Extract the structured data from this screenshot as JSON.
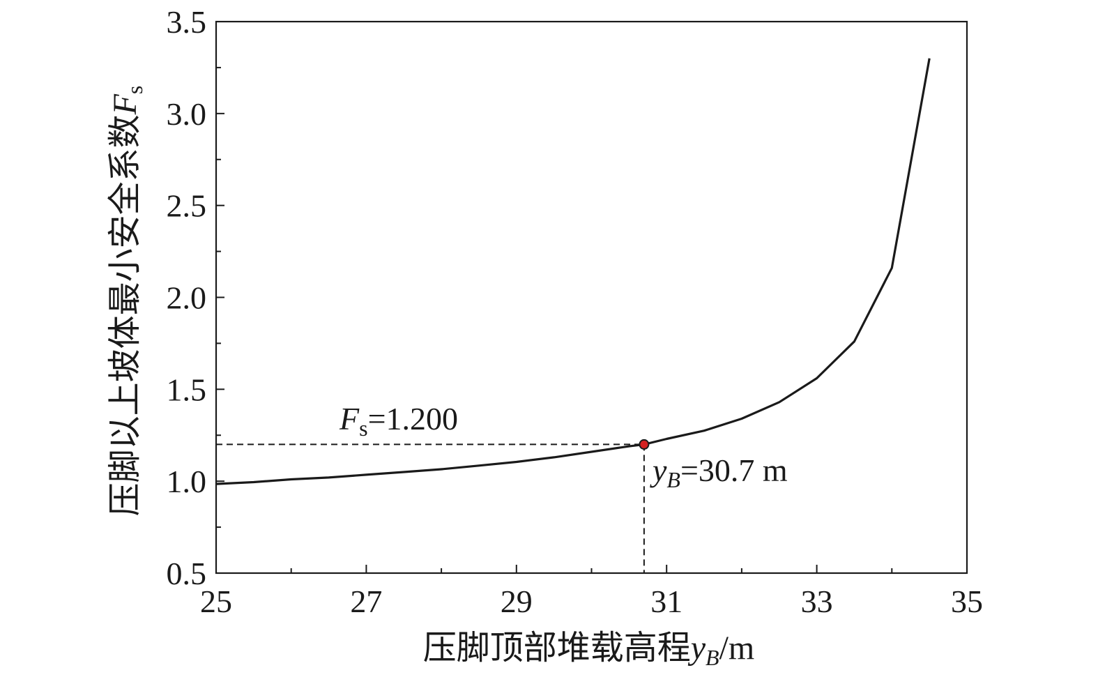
{
  "chart_data": {
    "type": "line",
    "title": "",
    "xlabel": "压脚顶部堆载高程",
    "xlabel_var": "y",
    "xlabel_sub": "B",
    "xlabel_unit": "/m",
    "ylabel": "压脚以上坡体最小安全系数",
    "ylabel_var": "F",
    "ylabel_sub": "s",
    "xlim": [
      25,
      35
    ],
    "ylim": [
      0.5,
      3.5
    ],
    "xticks": [
      25,
      27,
      29,
      31,
      33,
      35
    ],
    "xtick_labels": [
      "25",
      "27",
      "29",
      "31",
      "33",
      "35"
    ],
    "yticks": [
      0.5,
      1.0,
      1.5,
      2.0,
      2.5,
      3.0,
      3.5
    ],
    "ytick_labels": [
      "0.5",
      "1.0",
      "1.5",
      "2.0",
      "2.5",
      "3.0",
      "3.5"
    ],
    "grid": false,
    "series": [
      {
        "color": "#1a1a1a",
        "x": [
          25,
          25.5,
          26,
          26.5,
          27,
          27.5,
          28,
          28.5,
          29,
          29.5,
          30,
          30.5,
          30.7,
          31,
          31.5,
          32,
          32.5,
          33,
          33.5,
          34,
          34.5
        ],
        "y": [
          0.985,
          0.995,
          1.01,
          1.02,
          1.035,
          1.05,
          1.065,
          1.085,
          1.105,
          1.13,
          1.16,
          1.19,
          1.2,
          1.23,
          1.275,
          1.34,
          1.43,
          1.56,
          1.76,
          2.16,
          3.3
        ]
      }
    ],
    "highlight_point": {
      "x": 30.7,
      "y": 1.2,
      "color": "#d42020"
    },
    "annotations": {
      "fs": {
        "var": "F",
        "sub": "s",
        "text": "=1.200"
      },
      "yb": {
        "var": "y",
        "sub": "B",
        "text": "=30.7 m"
      }
    }
  }
}
